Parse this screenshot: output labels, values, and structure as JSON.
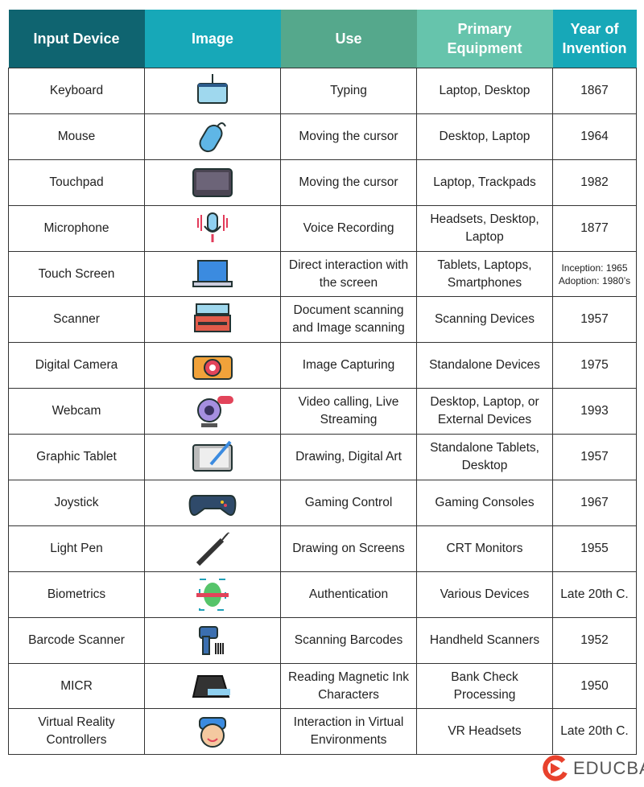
{
  "headers": [
    {
      "label": "Input Device",
      "color": "#0f6470"
    },
    {
      "label": "Image",
      "color": "#17a8b8"
    },
    {
      "label": "Use",
      "color": "#55a88c"
    },
    {
      "label": "Primary Equipment",
      "color": "#66c4ac"
    },
    {
      "label": "Year of Invention",
      "color": "#17a8b8"
    }
  ],
  "rows": [
    {
      "device": "Keyboard",
      "icon": "keyboard-icon",
      "use": "Typing",
      "equipment": "Laptop, Desktop",
      "year": "1867"
    },
    {
      "device": "Mouse",
      "icon": "mouse-icon",
      "use": "Moving the cursor",
      "equipment": "Desktop, Laptop",
      "year": "1964"
    },
    {
      "device": "Touchpad",
      "icon": "touchpad-icon",
      "use": "Moving the cursor",
      "equipment": "Laptop, Trackpads",
      "year": "1982"
    },
    {
      "device": "Microphone",
      "icon": "microphone-icon",
      "use": "Voice Recording",
      "equipment": "Headsets, Desktop, Laptop",
      "year": "1877"
    },
    {
      "device": "Touch Screen",
      "icon": "laptop-icon",
      "use": "Direct interaction with the screen",
      "equipment": "Tablets, Laptops, Smartphones",
      "year": "Inception: 1965 Adoption: 1980’s"
    },
    {
      "device": "Scanner",
      "icon": "scanner-icon",
      "use": "Document scanning and Image scanning",
      "equipment": "Scanning Devices",
      "year": "1957"
    },
    {
      "device": "Digital Camera",
      "icon": "camera-icon",
      "use": "Image Capturing",
      "equipment": "Standalone Devices",
      "year": "1975"
    },
    {
      "device": "Webcam",
      "icon": "webcam-icon",
      "use": "Video calling, Live Streaming",
      "equipment": "Desktop, Laptop, or External Devices",
      "year": "1993"
    },
    {
      "device": "Graphic Tablet",
      "icon": "graphic-tablet-icon",
      "use": "Drawing, Digital Art",
      "equipment": "Standalone Tablets, Desktop",
      "year": "1957"
    },
    {
      "device": "Joystick",
      "icon": "gamepad-icon",
      "use": "Gaming Control",
      "equipment": "Gaming Consoles",
      "year": "1967"
    },
    {
      "device": "Light Pen",
      "icon": "light-pen-icon",
      "use": "Drawing on Screens",
      "equipment": "CRT Monitors",
      "year": "1955"
    },
    {
      "device": "Biometrics",
      "icon": "fingerprint-icon",
      "use": "Authentication",
      "equipment": "Various Devices",
      "year": "Late 20th C."
    },
    {
      "device": "Barcode Scanner",
      "icon": "barcode-scanner-icon",
      "use": "Scanning Barcodes",
      "equipment": "Handheld Scanners",
      "year": "1952"
    },
    {
      "device": "MICR",
      "icon": "micr-icon",
      "use": "Reading Magnetic Ink Characters",
      "equipment": "Bank Check Processing",
      "year": "1950"
    },
    {
      "device": "Virtual Reality Controllers",
      "icon": "vr-headset-icon",
      "use": "Interaction in Virtual Environments",
      "equipment": "VR Headsets",
      "year": "Late 20th C."
    }
  ],
  "logo": {
    "text": "EDUCBA",
    "color": "#e8412c"
  }
}
